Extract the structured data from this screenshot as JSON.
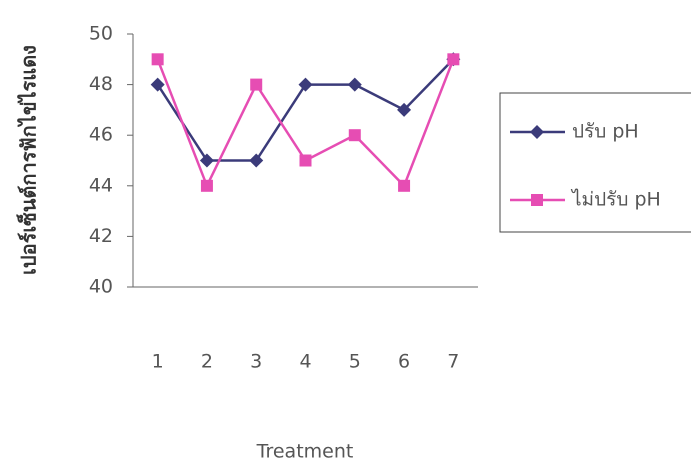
{
  "chart_data": {
    "type": "line",
    "y_label": "เปอร์เซ็นต์การฟักไข่ไรแดง",
    "x_label": "Treatment",
    "categories": [
      "1",
      "2",
      "3",
      "4",
      "5",
      "6",
      "7"
    ],
    "series": [
      {
        "name": "ปรับ pH",
        "color": "#3b3b7a",
        "marker": "diamond",
        "values": [
          48,
          45,
          45,
          48,
          48,
          47,
          49
        ]
      },
      {
        "name": "ไม่ปรับ pH",
        "color": "#e64db3",
        "marker": "square",
        "values": [
          49,
          44,
          48,
          45,
          46,
          44,
          49
        ]
      }
    ],
    "ylim": [
      40,
      50
    ],
    "yticks": [
      40,
      42,
      44,
      46,
      48,
      50
    ],
    "legend": "right"
  }
}
